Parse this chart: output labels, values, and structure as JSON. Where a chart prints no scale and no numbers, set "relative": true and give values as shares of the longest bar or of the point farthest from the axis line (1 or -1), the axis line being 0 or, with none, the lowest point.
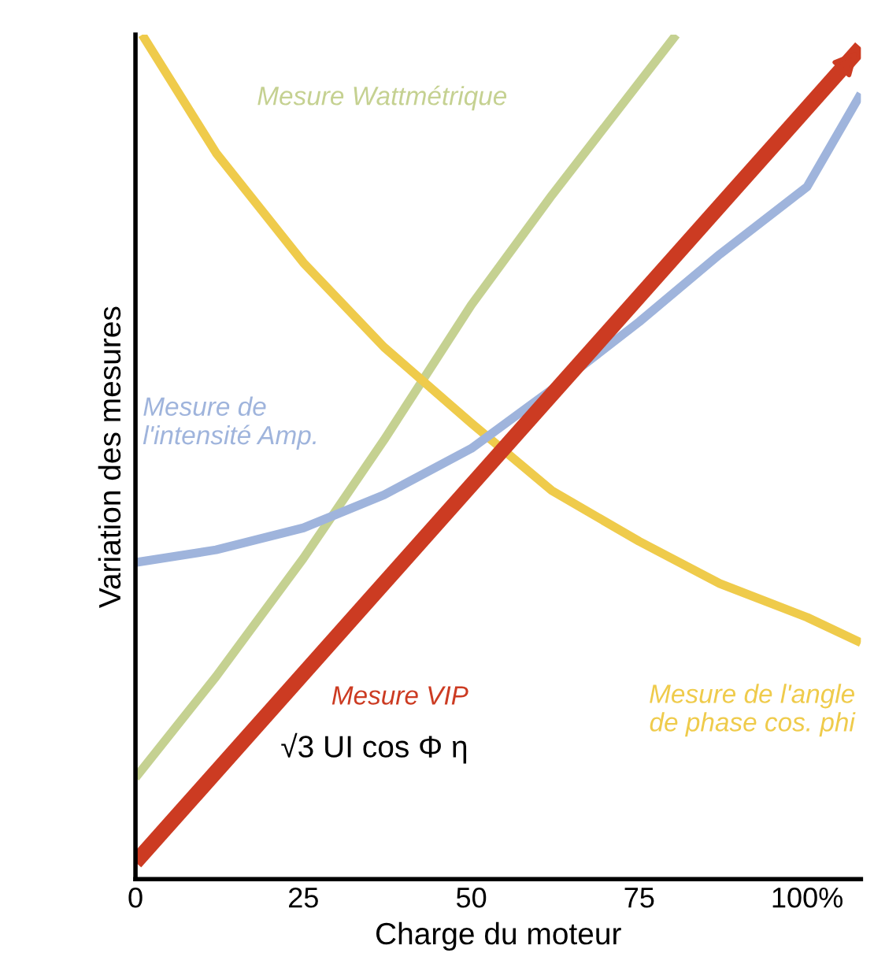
{
  "chart_data": {
    "type": "line",
    "relative": true,
    "xlabel": "Charge du moteur",
    "ylabel": "Variation des mesures",
    "xlim": [
      0,
      108
    ],
    "xticks": [
      0,
      25,
      50,
      75,
      {
        "value": 100,
        "label": "100%"
      }
    ],
    "tick_labels": "x",
    "grid": false,
    "legend": false,
    "marker": "none",
    "line_style": "solid",
    "series": [
      {
        "name": "Mesure Wattmétrique",
        "color": "#c5d191",
        "x": [
          0,
          12,
          25,
          37,
          50,
          62,
          80.5
        ],
        "values": [
          0.12,
          0.24,
          0.38,
          0.52,
          0.68,
          0.81,
          1.0
        ]
      },
      {
        "name": "Mesure de l'angle de phase cos. phi",
        "color": "#efcb4b",
        "x": [
          1,
          12,
          25,
          37,
          50,
          62,
          75,
          87,
          100,
          108
        ],
        "values": [
          1.0,
          0.86,
          0.73,
          0.63,
          0.54,
          0.46,
          0.4,
          0.35,
          0.31,
          0.28
        ]
      },
      {
        "name": "Mesure de\nl'intensité Amp.",
        "color": "#9fb4dc",
        "x": [
          0,
          12,
          25,
          37,
          50,
          62,
          75,
          87,
          100,
          108
        ],
        "values": [
          0.375,
          0.39,
          0.416,
          0.455,
          0.51,
          0.58,
          0.66,
          0.74,
          0.82,
          0.93
        ]
      },
      {
        "name": "Mesure VIP",
        "color": "#cc3b22",
        "x": [
          0,
          108
        ],
        "values": [
          0.02,
          0.985
        ]
      }
    ],
    "annotations": [
      "√3 UI cos Φ η"
    ]
  }
}
